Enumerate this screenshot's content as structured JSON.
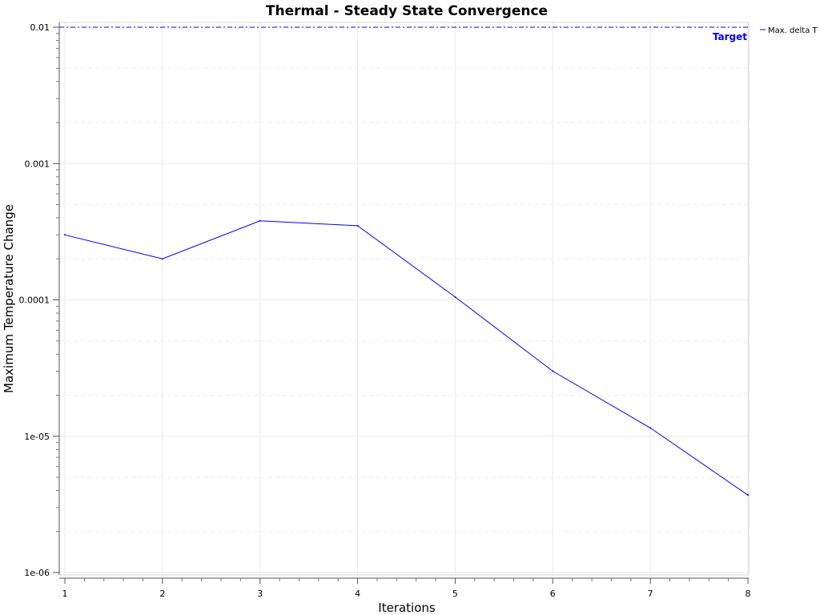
{
  "chart_data": {
    "type": "line",
    "title": "Thermal - Steady State Convergence",
    "xlabel": "Iterations",
    "ylabel": "Maximum Temperature Change",
    "y_scale": "log",
    "xlim": [
      1,
      8
    ],
    "ylim": [
      1e-06,
      0.01
    ],
    "x_ticks": [
      1,
      2,
      3,
      4,
      5,
      6,
      7,
      8
    ],
    "x_tick_labels": [
      "1",
      "2",
      "3",
      "4",
      "5",
      "6",
      "7",
      "8"
    ],
    "y_ticks": [
      1e-06,
      1e-05,
      0.0001,
      0.001,
      0.01
    ],
    "y_tick_labels": [
      "1e-06",
      "1e-05",
      "0.0001",
      "0.001",
      "0.01"
    ],
    "grid": true,
    "legend_position": "top-right, outside plot",
    "series": [
      {
        "name": "Max. delta T",
        "color": "#0000ff",
        "x": [
          1,
          2,
          3,
          4,
          5,
          6,
          7,
          8
        ],
        "y": [
          0.0003,
          0.0002,
          0.00038,
          0.00035,
          0.000105,
          3e-05,
          1.15e-05,
          3.7e-06
        ]
      }
    ],
    "annotations": [
      {
        "type": "horizontal-line",
        "label": "Target",
        "y": 0.01,
        "color": "#0000ff",
        "style": "dash-dot"
      }
    ]
  }
}
